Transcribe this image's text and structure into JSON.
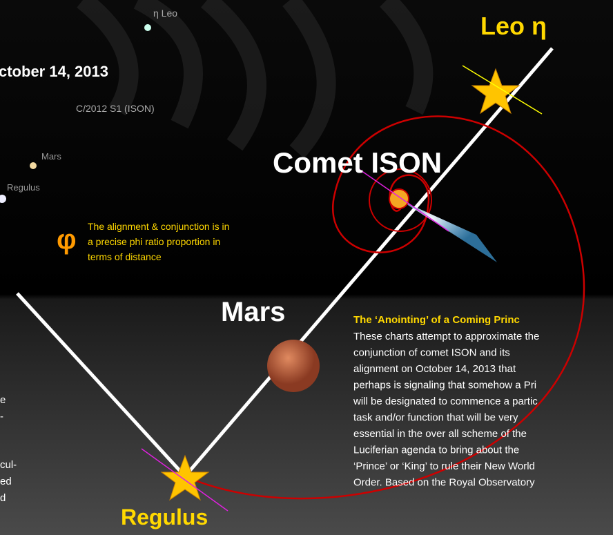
{
  "sky_labels": {
    "eta_leo": "η Leo",
    "date": "ctober 14, 2013",
    "comet_tag": "C/2012 S1 (ISON)",
    "mars_small": "Mars",
    "regulus_small": "Regulus"
  },
  "labels": {
    "leo": "Leo η",
    "comet": "Comet ISON",
    "mars": "Mars",
    "regulus": "Regulus"
  },
  "phi": {
    "symbol": "φ",
    "lines": [
      "The alignment & conjunction is in",
      "a precise phi ratio proportion in",
      "terms of distance"
    ]
  },
  "article": {
    "title": "The ‘Anointing’ of a Coming Princ",
    "lines": [
      "These charts attempt to approximate the",
      "conjunction of comet ISON and its",
      "alignment on October 14, 2013 that",
      "perhaps is signaling that somehow a Pri",
      "will be designated to commence a partic",
      "task and/or function that will be very",
      "essential in the over all scheme of the",
      "Luciferian agenda to bring about the",
      "‘Prince’ or ‘King’ to rule their New World",
      "Order. Based on the Royal Observatory"
    ]
  },
  "left_fragments": [
    "e",
    "-",
    "cul-",
    "ed",
    "d"
  ]
}
